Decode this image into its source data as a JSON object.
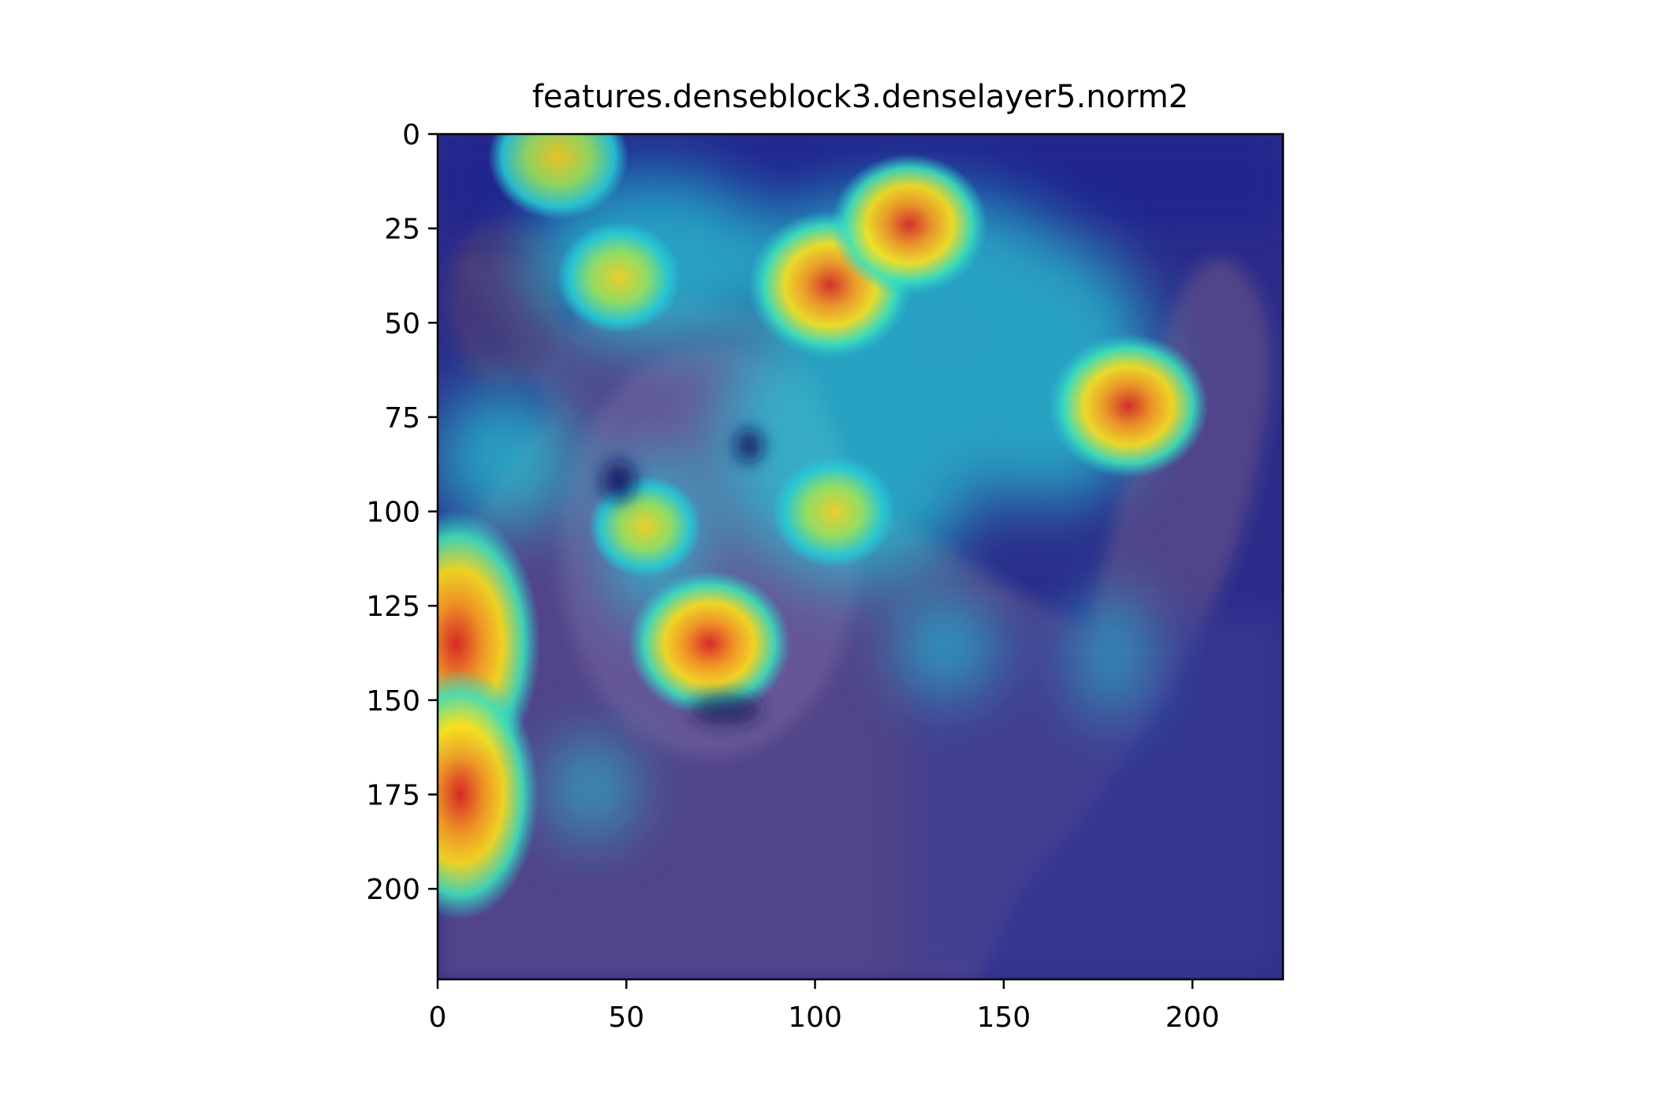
{
  "figure": {
    "title": "features.denseblock3.denselayer5.norm2"
  },
  "chart_data": {
    "type": "heatmap",
    "title": "features.denseblock3.denselayer5.norm2",
    "xlabel": "",
    "ylabel": "",
    "image_size": [
      224,
      224
    ],
    "xlim": [
      0,
      224
    ],
    "ylim": [
      224,
      0
    ],
    "x_ticks": [
      0,
      50,
      100,
      150,
      200
    ],
    "y_ticks": [
      0,
      25,
      50,
      75,
      100,
      125,
      150,
      175,
      200
    ],
    "colormap": "jet",
    "grid": false,
    "underlying_image": "photo of a bear raising one paw, overlaid with an activation heatmap",
    "hotspots": [
      {
        "x": 5,
        "y": 135,
        "intensity": 0.95
      },
      {
        "x": 6,
        "y": 175,
        "intensity": 0.85
      },
      {
        "x": 72,
        "y": 135,
        "intensity": 0.9
      },
      {
        "x": 104,
        "y": 40,
        "intensity": 0.92
      },
      {
        "x": 125,
        "y": 24,
        "intensity": 0.85
      },
      {
        "x": 183,
        "y": 72,
        "intensity": 0.88
      },
      {
        "x": 32,
        "y": 6,
        "intensity": 0.7
      },
      {
        "x": 48,
        "y": 38,
        "intensity": 0.55
      },
      {
        "x": 105,
        "y": 100,
        "intensity": 0.55
      },
      {
        "x": 55,
        "y": 104,
        "intensity": 0.45
      }
    ],
    "colors": {
      "background_low": "#1a1f8f",
      "mid": "#27c9d6",
      "high": "#ffd21a",
      "peak": "#e5261c"
    }
  }
}
